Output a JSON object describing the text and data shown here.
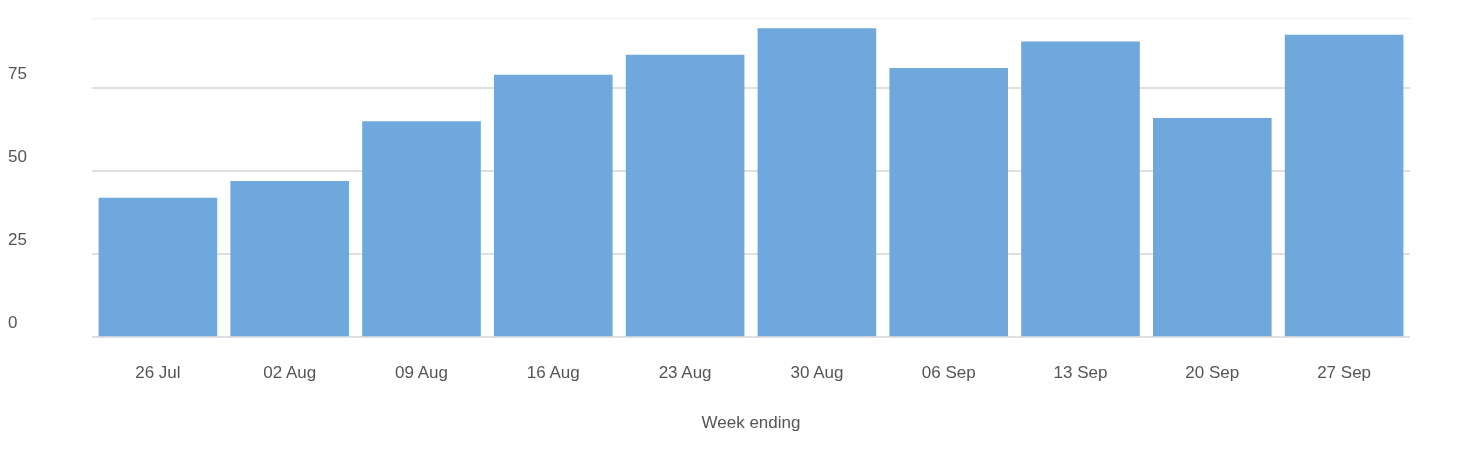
{
  "chart_data": {
    "type": "bar",
    "xlabel": "Week ending",
    "categories": [
      "26 Jul",
      "02 Aug",
      "09 Aug",
      "16 Aug",
      "23 Aug",
      "30 Aug",
      "06 Sep",
      "13 Sep",
      "20 Sep",
      "27 Sep"
    ],
    "values": [
      42,
      47,
      65,
      79,
      85,
      93,
      81,
      89,
      66,
      91
    ],
    "color": "#6fa8dc",
    "ylim": [
      0,
      96
    ],
    "yticks": [
      0,
      25,
      50,
      75
    ],
    "grid": "y"
  }
}
